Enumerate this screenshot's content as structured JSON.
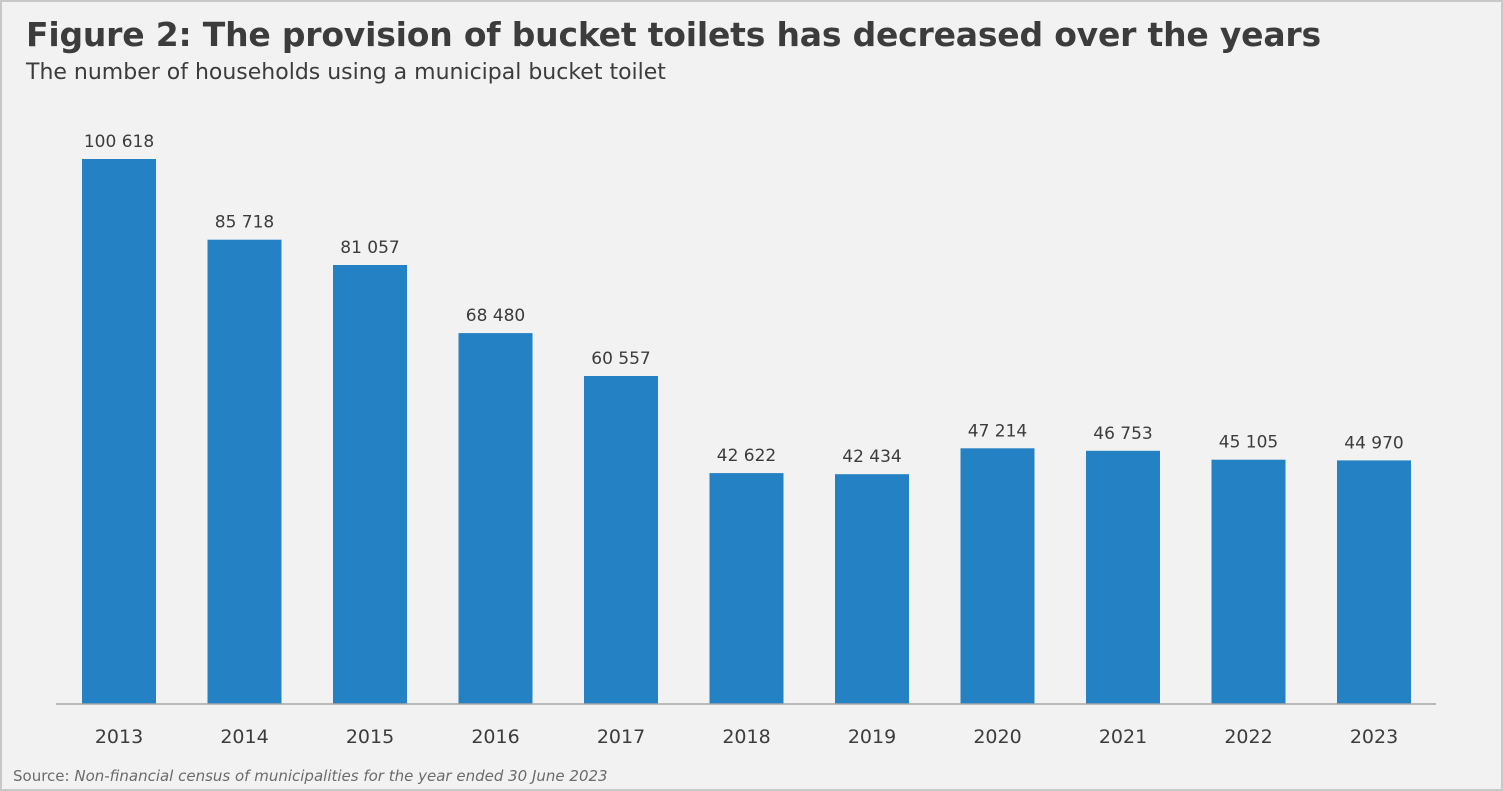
{
  "figure": {
    "title": "Figure 2: The provision of bucket toilets has decreased over the years",
    "subtitle": "The number of households using a municipal bucket toilet",
    "source_label": "Source:",
    "source_text": "Non-financial census of municipalities for the year ended 30 June 2023"
  },
  "chart_data": {
    "type": "bar",
    "title": "Figure 2: The provision of bucket toilets has decreased over the years",
    "subtitle": "The number of households using a municipal bucket toilet",
    "categories": [
      "2013",
      "2014",
      "2015",
      "2016",
      "2017",
      "2018",
      "2019",
      "2020",
      "2021",
      "2022",
      "2023"
    ],
    "values": [
      100618,
      85718,
      81057,
      68480,
      60557,
      42622,
      42434,
      47214,
      46753,
      45105,
      44970
    ],
    "value_labels": [
      "100 618",
      "85 718",
      "81 057",
      "68 480",
      "60 557",
      "42 622",
      "42 434",
      "47 214",
      "46 753",
      "45 105",
      "44 970"
    ],
    "ylim": [
      0,
      100618
    ],
    "grid": false,
    "legend": "none",
    "bar_color": "#2481c3"
  }
}
